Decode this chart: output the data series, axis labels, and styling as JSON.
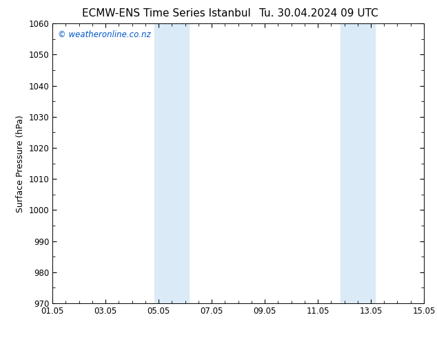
{
  "title_left": "ECMW-ENS Time Series Istanbul",
  "title_right": "Tu. 30.04.2024 09 UTC",
  "ylabel": "Surface Pressure (hPa)",
  "ylim": [
    970,
    1060
  ],
  "yticks": [
    970,
    980,
    990,
    1000,
    1010,
    1020,
    1030,
    1040,
    1050,
    1060
  ],
  "xlim_start": 0,
  "xlim_end": 14,
  "xtick_positions": [
    0,
    2,
    4,
    6,
    8,
    10,
    12,
    14
  ],
  "xtick_labels": [
    "01.05",
    "03.05",
    "05.05",
    "07.05",
    "09.05",
    "11.05",
    "13.05",
    "15.05"
  ],
  "shaded_bands": [
    {
      "x_start": 3.85,
      "x_end": 5.15
    },
    {
      "x_start": 10.85,
      "x_end": 12.15
    }
  ],
  "band_color": "#daeaf6",
  "background_color": "#ffffff",
  "plot_bg_color": "#ffffff",
  "watermark_text": "© weatheronline.co.nz",
  "watermark_color": "#0055cc",
  "title_fontsize": 11,
  "tick_fontsize": 8.5,
  "ylabel_fontsize": 9,
  "watermark_fontsize": 8.5,
  "minor_xtick_interval": 0.5
}
